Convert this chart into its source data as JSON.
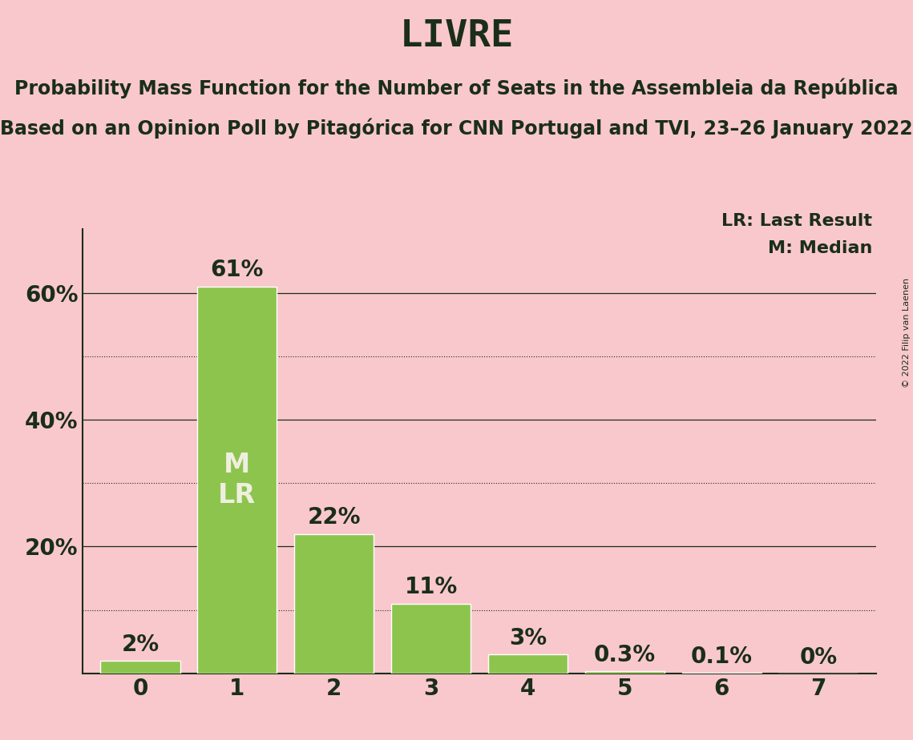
{
  "title": "LIVRE",
  "subtitle1": "Probability Mass Function for the Number of Seats in the Assembleia da República",
  "subtitle2": "Based on an Opinion Poll by Pitagórica for CNN Portugal and TVI, 23–26 January 2022",
  "copyright": "© 2022 Filip van Laenen",
  "categories": [
    0,
    1,
    2,
    3,
    4,
    5,
    6,
    7
  ],
  "values": [
    2,
    61,
    22,
    11,
    3,
    0.3,
    0.1,
    0
  ],
  "labels": [
    "2%",
    "61%",
    "22%",
    "11%",
    "3%",
    "0.3%",
    "0.1%",
    "0%"
  ],
  "bar_color": "#8dc44e",
  "background_color": "#f9c8cc",
  "text_color": "#1a2e1a",
  "median_bar": 1,
  "last_result_bar": 1,
  "median_label": "M",
  "last_result_label": "LR",
  "legend_lr": "LR: Last Result",
  "legend_m": "M: Median",
  "ytick_positions": [
    20,
    40,
    60
  ],
  "ytick_labels": [
    "20%",
    "40%",
    "60%"
  ],
  "dotted_lines": [
    10,
    30,
    50
  ],
  "solid_lines": [
    20,
    40,
    60
  ],
  "ylim": [
    0,
    70
  ],
  "xlim": [
    -0.6,
    7.6
  ],
  "title_fontsize": 34,
  "subtitle_fontsize": 17,
  "label_fontsize": 20,
  "tick_fontsize": 20,
  "legend_fontsize": 16,
  "inner_label_fontsize": 24,
  "bar_width": 0.82
}
